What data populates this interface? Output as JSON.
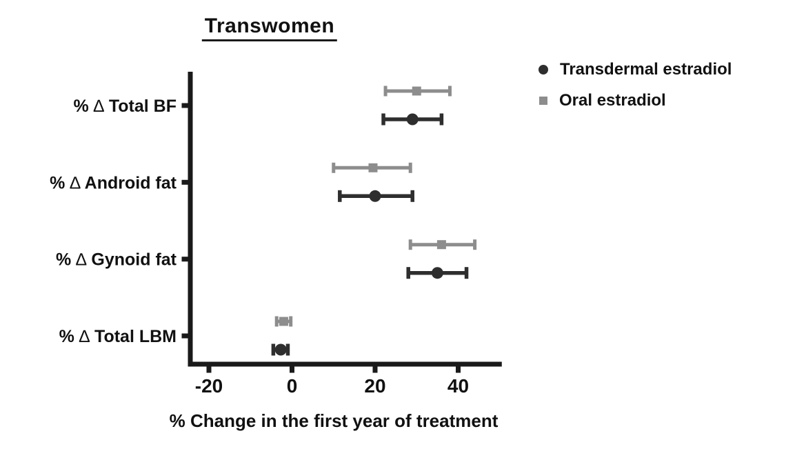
{
  "chart_data": {
    "type": "scatter",
    "subtype": "horizontal-dot-plot-with-error-bars",
    "title": "Transwomen",
    "xlabel": "% Change in the first year of treatment",
    "ylabel": "",
    "categories": [
      "% ∆ Total BF",
      "% ∆ Android fat",
      "% ∆ Gynoid fat",
      "% ∆ Total LBM"
    ],
    "x_ticks": [
      -20,
      0,
      20,
      40
    ],
    "x_tick_labels": [
      "-20",
      "0",
      "20",
      "40"
    ],
    "xlim": [
      -24.5,
      50.5
    ],
    "grid": false,
    "legend_position": "top-right",
    "axis_color": "#1a1a1a",
    "series": [
      {
        "name": "Transdermal estradiol",
        "marker": "circle",
        "color": "#2e2e2e",
        "values": [
          {
            "category": "% ∆ Total BF",
            "mean": 29,
            "lo": 22,
            "hi": 36
          },
          {
            "category": "% ∆ Android fat",
            "mean": 20,
            "lo": 11.5,
            "hi": 29
          },
          {
            "category": "% ∆ Gynoid fat",
            "mean": 35,
            "lo": 28,
            "hi": 42
          },
          {
            "category": "% ∆ Total LBM",
            "mean": -2.7,
            "lo": -4.5,
            "hi": -1
          }
        ]
      },
      {
        "name": "Oral estradiol",
        "marker": "square",
        "color": "#8d8d8d",
        "values": [
          {
            "category": "% ∆ Total BF",
            "mean": 30,
            "lo": 22.5,
            "hi": 38
          },
          {
            "category": "% ∆ Android fat",
            "mean": 19.5,
            "lo": 10,
            "hi": 28.5
          },
          {
            "category": "% ∆ Gynoid fat",
            "mean": 36,
            "lo": 28.5,
            "hi": 44
          },
          {
            "category": "% ∆ Total LBM",
            "mean": -2,
            "lo": -3.7,
            "hi": -0.3
          }
        ]
      }
    ]
  }
}
